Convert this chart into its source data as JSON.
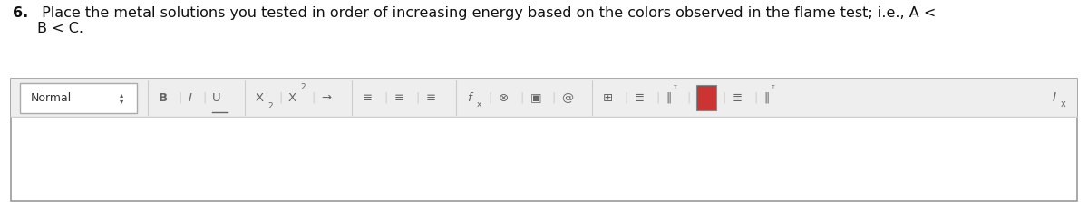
{
  "title_bold": "6.",
  "title_text": " Place the metal solutions you tested in order of increasing energy based on the colors observed in the flame test; i.e., A <\nB < C.",
  "title_fontsize": 11.5,
  "bg_color": "#ffffff",
  "toolbar_bg": "#eeeeee",
  "toolbar_border": "#cccccc",
  "normal_label": "Normal",
  "normal_box_color": "#ffffff",
  "normal_box_border": "#aaaaaa",
  "content_area_bg": "#ffffff",
  "outer_border_color": "#999999",
  "icon_color": "#666666",
  "sep_color": "#cccccc",
  "red_icon_color": "#cc3333"
}
